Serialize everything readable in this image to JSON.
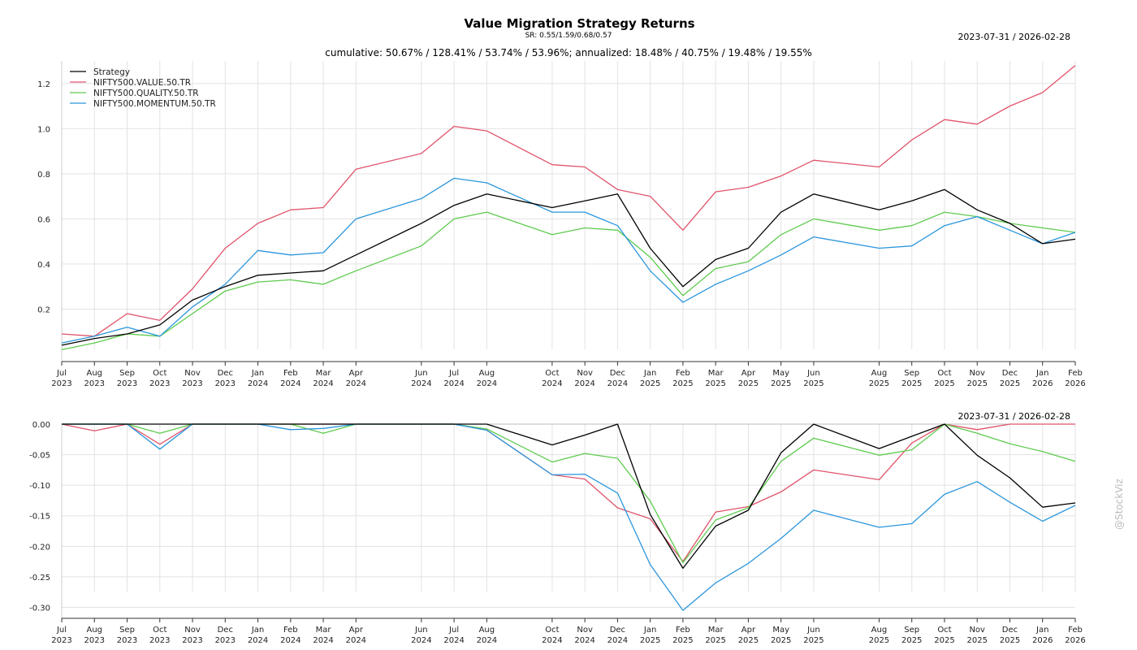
{
  "header": {
    "title": "Value Migration Strategy Returns",
    "subtitle": "SR: 0.55/1.59/0.68/0.57",
    "date_range_top": "2023-07-31 / 2026-02-28",
    "stats": "cumulative: 50.67% / 128.41% / 53.74% / 53.96%; annualized: 18.48% / 40.75% / 19.48% / 19.55%",
    "date_range_bottom": "2023-07-31 / 2026-02-28",
    "watermark": "@StockViz"
  },
  "colors": {
    "Strategy": "#000000",
    "NIFTY500.VALUE.50.TR": "#e0536b",
    "NIFTY500.QUALITY.50.TR": "#5ecb4e",
    "NIFTY500.MOMENTUM.50.TR": "#2b96dc"
  },
  "chart_data": [
    {
      "type": "line",
      "title": "Value Migration Strategy Returns",
      "ylim": [
        0.0,
        1.3
      ],
      "yticks": [
        "0.2",
        "0.4",
        "0.6",
        "0.8",
        "1.0",
        "1.2"
      ],
      "ytick_values": [
        0.2,
        0.4,
        0.6,
        0.8,
        1.0,
        1.2
      ],
      "legend_position": "top-left",
      "x_month_index": [
        0,
        1,
        2,
        3,
        4,
        5,
        6,
        7,
        8,
        9,
        11,
        12,
        13,
        15,
        16,
        17,
        18,
        19,
        20,
        21,
        22,
        23,
        25,
        26,
        27,
        28,
        29,
        30,
        31
      ],
      "series": [
        {
          "name": "Strategy",
          "values": [
            0.04,
            0.07,
            0.09,
            0.13,
            0.24,
            0.3,
            0.35,
            0.36,
            0.37,
            0.44,
            0.58,
            0.66,
            0.71,
            0.65,
            0.68,
            0.71,
            0.47,
            0.3,
            0.42,
            0.47,
            0.63,
            0.71,
            0.64,
            0.68,
            0.73,
            0.64,
            0.58,
            0.49,
            0.51
          ]
        },
        {
          "name": "NIFTY500.VALUE.50.TR",
          "values": [
            0.09,
            0.08,
            0.18,
            0.15,
            0.29,
            0.47,
            0.58,
            0.64,
            0.65,
            0.82,
            0.89,
            1.01,
            0.99,
            0.84,
            0.83,
            0.73,
            0.7,
            0.55,
            0.72,
            0.74,
            0.79,
            0.86,
            0.83,
            0.95,
            1.04,
            1.02,
            1.1,
            1.16,
            1.28
          ]
        },
        {
          "name": "NIFTY500.QUALITY.50.TR",
          "values": [
            0.02,
            0.05,
            0.09,
            0.08,
            0.18,
            0.28,
            0.32,
            0.33,
            0.31,
            0.37,
            0.48,
            0.6,
            0.63,
            0.53,
            0.56,
            0.55,
            0.43,
            0.26,
            0.38,
            0.41,
            0.53,
            0.6,
            0.55,
            0.57,
            0.63,
            0.61,
            0.58,
            0.56,
            0.54
          ]
        },
        {
          "name": "NIFTY500.MOMENTUM.50.TR",
          "values": [
            0.05,
            0.08,
            0.12,
            0.08,
            0.21,
            0.31,
            0.46,
            0.44,
            0.45,
            0.6,
            0.69,
            0.78,
            0.76,
            0.63,
            0.63,
            0.57,
            0.37,
            0.23,
            0.31,
            0.37,
            0.44,
            0.52,
            0.47,
            0.48,
            0.57,
            0.61,
            0.55,
            0.49,
            0.54
          ]
        }
      ]
    },
    {
      "type": "line",
      "title": "",
      "ylim": [
        -0.31,
        0.0
      ],
      "yticks": [
        "0.00",
        "-0.05",
        "-0.10",
        "-0.15",
        "-0.20",
        "-0.25",
        "-0.30"
      ],
      "ytick_values": [
        0.0,
        -0.05,
        -0.1,
        -0.15,
        -0.2,
        -0.25,
        -0.3
      ],
      "x_month_index": [
        0,
        1,
        2,
        3,
        4,
        5,
        6,
        7,
        8,
        9,
        11,
        12,
        13,
        15,
        16,
        17,
        18,
        19,
        20,
        21,
        22,
        23,
        25,
        26,
        27,
        28,
        29,
        30,
        31
      ],
      "series": [
        {
          "name": "Strategy",
          "values": [
            0,
            0,
            0,
            0,
            0,
            0,
            0,
            0,
            0,
            0,
            0,
            0,
            0,
            -0.034,
            -0.018,
            0,
            -0.148,
            -0.236,
            -0.167,
            -0.141,
            -0.047,
            0,
            -0.04,
            -0.02,
            0,
            -0.051,
            -0.088,
            -0.136,
            -0.129
          ]
        },
        {
          "name": "NIFTY500.VALUE.50.TR",
          "values": [
            0,
            -0.011,
            0,
            -0.033,
            0,
            0,
            0,
            0,
            0,
            0,
            0,
            0,
            -0.01,
            -0.083,
            -0.09,
            -0.137,
            -0.155,
            -0.225,
            -0.144,
            -0.135,
            -0.111,
            -0.075,
            -0.091,
            -0.031,
            0,
            -0.009,
            0,
            0,
            0
          ]
        },
        {
          "name": "NIFTY500.QUALITY.50.TR",
          "values": [
            0,
            0,
            0,
            -0.015,
            0,
            0,
            0,
            0,
            -0.015,
            0,
            0,
            0,
            -0.008,
            -0.062,
            -0.048,
            -0.056,
            -0.126,
            -0.227,
            -0.157,
            -0.137,
            -0.061,
            -0.023,
            -0.051,
            -0.042,
            0,
            -0.015,
            -0.032,
            -0.045,
            -0.061
          ]
        },
        {
          "name": "NIFTY500.MOMENTUM.50.TR",
          "values": [
            0,
            0,
            0,
            -0.041,
            0,
            0,
            0,
            -0.009,
            -0.007,
            0,
            0,
            0,
            -0.01,
            -0.083,
            -0.082,
            -0.113,
            -0.23,
            -0.305,
            -0.26,
            -0.228,
            -0.187,
            -0.141,
            -0.169,
            -0.163,
            -0.115,
            -0.094,
            -0.128,
            -0.159,
            -0.133
          ]
        }
      ]
    }
  ],
  "x_ticks": [
    {
      "month": "Jul",
      "year": "2023"
    },
    {
      "month": "Aug",
      "year": "2023"
    },
    {
      "month": "Sep",
      "year": "2023"
    },
    {
      "month": "Oct",
      "year": "2023"
    },
    {
      "month": "Nov",
      "year": "2023"
    },
    {
      "month": "Dec",
      "year": "2023"
    },
    {
      "month": "Jan",
      "year": "2024"
    },
    {
      "month": "Feb",
      "year": "2024"
    },
    {
      "month": "Mar",
      "year": "2024"
    },
    {
      "month": "Apr",
      "year": "2024"
    },
    {
      "month": "Jun",
      "year": "2024"
    },
    {
      "month": "Jul",
      "year": "2024"
    },
    {
      "month": "Aug",
      "year": "2024"
    },
    {
      "month": "Oct",
      "year": "2024"
    },
    {
      "month": "Nov",
      "year": "2024"
    },
    {
      "month": "Dec",
      "year": "2024"
    },
    {
      "month": "Jan",
      "year": "2025"
    },
    {
      "month": "Feb",
      "year": "2025"
    },
    {
      "month": "Mar",
      "year": "2025"
    },
    {
      "month": "Apr",
      "year": "2025"
    },
    {
      "month": "May",
      "year": "2025"
    },
    {
      "month": "Jun",
      "year": "2025"
    },
    {
      "month": "Aug",
      "year": "2025"
    },
    {
      "month": "Sep",
      "year": "2025"
    },
    {
      "month": "Oct",
      "year": "2025"
    },
    {
      "month": "Nov",
      "year": "2025"
    },
    {
      "month": "Dec",
      "year": "2025"
    },
    {
      "month": "Jan",
      "year": "2026"
    },
    {
      "month": "Feb",
      "year": "2026"
    }
  ]
}
